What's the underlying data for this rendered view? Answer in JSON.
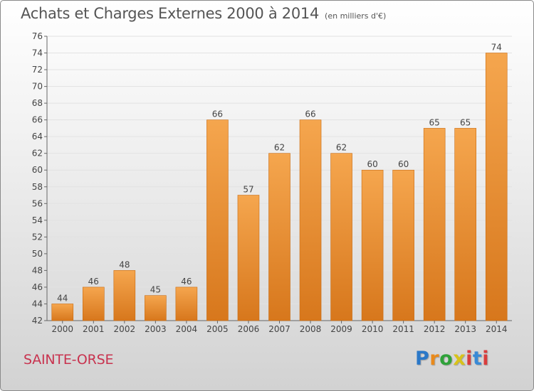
{
  "header": {
    "title": "Achats et Charges Externes 2000 à 2014",
    "unit": "(en milliers d'€)"
  },
  "footer": {
    "commune": "SAINTE-ORSE",
    "logo": [
      "P",
      "r",
      "o",
      "x",
      "i",
      "t",
      "i"
    ]
  },
  "colors": {
    "bar_top": "#f5a64e",
    "bar_bottom": "#d7771c",
    "bar_edge": "#c86b12",
    "commune": "#c8334f"
  },
  "chart_data": {
    "type": "bar",
    "title": "Achats et Charges Externes 2000 à 2014",
    "subtitle": "(en milliers d'€)",
    "categories": [
      "2000",
      "2001",
      "2002",
      "2003",
      "2004",
      "2005",
      "2006",
      "2007",
      "2008",
      "2009",
      "2010",
      "2011",
      "2012",
      "2013",
      "2014"
    ],
    "values": [
      44,
      46,
      48,
      45,
      46,
      66,
      57,
      62,
      66,
      62,
      60,
      60,
      65,
      65,
      74
    ],
    "ylim": [
      42,
      76
    ],
    "yticks": [
      42,
      44,
      46,
      48,
      50,
      52,
      54,
      56,
      58,
      60,
      62,
      64,
      66,
      68,
      70,
      72,
      74,
      76
    ],
    "grid": true,
    "legend": "none"
  }
}
